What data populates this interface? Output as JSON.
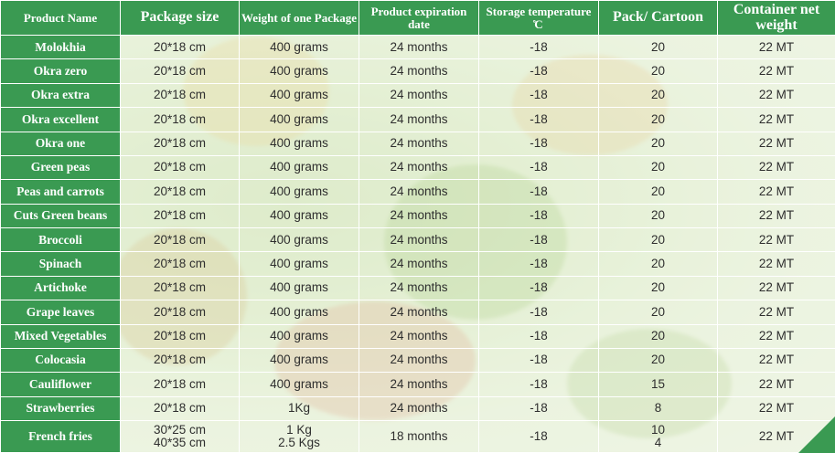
{
  "headers": [
    "Product Name",
    "Package size",
    "Weight of one Package",
    "Product expiration date",
    "Storage temperature ̊C",
    "Pack/ Cartoon",
    "Container net weight"
  ],
  "rows": [
    {
      "name": "Molokhia",
      "size": "20*18 cm",
      "weight": "400 grams",
      "expiry": "24 months",
      "temp": "-18",
      "pack": "20",
      "container": "22 MT"
    },
    {
      "name": "Okra zero",
      "size": "20*18 cm",
      "weight": "400 grams",
      "expiry": "24 months",
      "temp": "-18",
      "pack": "20",
      "container": "22 MT"
    },
    {
      "name": "Okra extra",
      "size": "20*18 cm",
      "weight": "400 grams",
      "expiry": "24 months",
      "temp": "-18",
      "pack": "20",
      "container": "22 MT"
    },
    {
      "name": "Okra excellent",
      "size": "20*18 cm",
      "weight": "400 grams",
      "expiry": "24 months",
      "temp": "-18",
      "pack": "20",
      "container": "22 MT"
    },
    {
      "name": "Okra one",
      "size": "20*18 cm",
      "weight": "400 grams",
      "expiry": "24 months",
      "temp": "-18",
      "pack": "20",
      "container": "22 MT"
    },
    {
      "name": "Green peas",
      "size": "20*18 cm",
      "weight": "400 grams",
      "expiry": "24 months",
      "temp": "-18",
      "pack": "20",
      "container": "22 MT"
    },
    {
      "name": "Peas and carrots",
      "size": "20*18 cm",
      "weight": "400 grams",
      "expiry": "24 months",
      "temp": "-18",
      "pack": "20",
      "container": "22 MT"
    },
    {
      "name": "Cuts Green beans",
      "size": "20*18 cm",
      "weight": "400 grams",
      "expiry": "24 months",
      "temp": "-18",
      "pack": "20",
      "container": "22 MT"
    },
    {
      "name": "Broccoli",
      "size": "20*18 cm",
      "weight": "400 grams",
      "expiry": "24 months",
      "temp": "-18",
      "pack": "20",
      "container": "22 MT"
    },
    {
      "name": "Spinach",
      "size": "20*18 cm",
      "weight": "400 grams",
      "expiry": "24 months",
      "temp": "-18",
      "pack": "20",
      "container": "22 MT"
    },
    {
      "name": "Artichoke",
      "size": "20*18 cm",
      "weight": "400 grams",
      "expiry": "24 months",
      "temp": "-18",
      "pack": "20",
      "container": "22 MT"
    },
    {
      "name": "Grape leaves",
      "size": "20*18 cm",
      "weight": "400 grams",
      "expiry": "24 months",
      "temp": "-18",
      "pack": "20",
      "container": "22 MT"
    },
    {
      "name": "Mixed Vegetables",
      "size": "20*18 cm",
      "weight": "400 grams",
      "expiry": "24 months",
      "temp": "-18",
      "pack": "20",
      "container": "22 MT"
    },
    {
      "name": "Colocasia",
      "size": "20*18 cm",
      "weight": "400 grams",
      "expiry": "24 months",
      "temp": "-18",
      "pack": "20",
      "container": "22 MT"
    },
    {
      "name": "Cauliflower",
      "size": "20*18 cm",
      "weight": "400 grams",
      "expiry": "24 months",
      "temp": "-18",
      "pack": "15",
      "container": "22 MT"
    },
    {
      "name": "Strawberries",
      "size": "20*18 cm",
      "weight": "1Kg",
      "expiry": "24 months",
      "temp": "-18",
      "pack": "8",
      "container": "22 MT"
    },
    {
      "name": "French fries",
      "size": "30*25 cm\n40*35 cm",
      "weight": "1 Kg\n2.5 Kgs",
      "expiry": "18 months",
      "temp": "-18",
      "pack": "10\n4",
      "container": "22 MT"
    }
  ],
  "colors": {
    "header_bg": "#3a9a52",
    "header_text": "#ffffff",
    "cell_text": "#2e2e2e",
    "accent": "#3a9a52"
  }
}
